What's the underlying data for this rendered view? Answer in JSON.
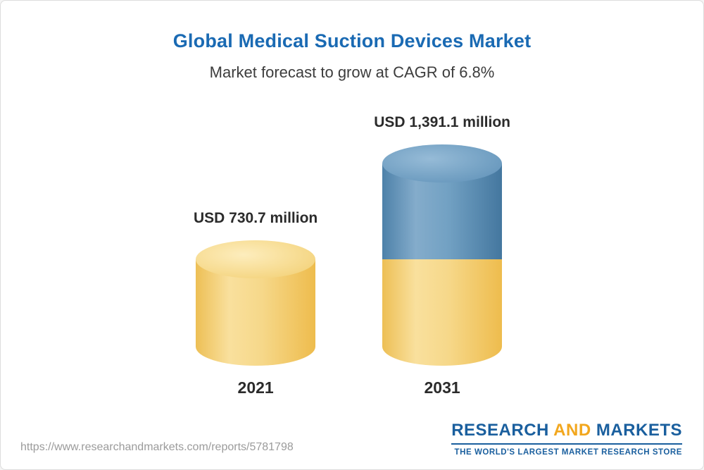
{
  "chart": {
    "title": "Global Medical Suction Devices Market",
    "subtitle": "Market forecast to grow at CAGR of 6.8%"
  },
  "chart_data": {
    "type": "bar",
    "variant": "3d-cylinder",
    "title": "Global Medical Suction Devices Market",
    "subtitle": "Market forecast to grow at CAGR of 6.8%",
    "cagr_percent": 6.8,
    "unit": "USD million",
    "categories": [
      "2021",
      "2031"
    ],
    "values": [
      730.7,
      1391.1
    ],
    "points": [
      {
        "category": "2021",
        "value": 730.7,
        "label": "USD 730.7 million",
        "segments": [
          {
            "name": "base-2021",
            "value": 730.7,
            "palette": "gold"
          }
        ]
      },
      {
        "category": "2031",
        "value": 1391.1,
        "label": "USD 1,391.1 million",
        "segments": [
          {
            "name": "base-2021-level",
            "value": 730.7,
            "palette": "gold"
          },
          {
            "name": "growth-to-2031",
            "value": 660.4,
            "palette": "blue"
          }
        ]
      }
    ],
    "colors": {
      "gold": "#f2c95c",
      "blue": "#5b8db5",
      "title_blue": "#1a6ab3",
      "text": "#2b2b2b"
    },
    "layout": {
      "legend": false,
      "grid": false,
      "value_labels": "above bars"
    }
  },
  "footer": {
    "url": "https://www.researchandmarkets.com/reports/5781798",
    "logo": {
      "research": "RESEARCH ",
      "and": "AND",
      "markets": " MARKETS",
      "tagline": "THE WORLD'S LARGEST MARKET RESEARCH STORE"
    }
  }
}
